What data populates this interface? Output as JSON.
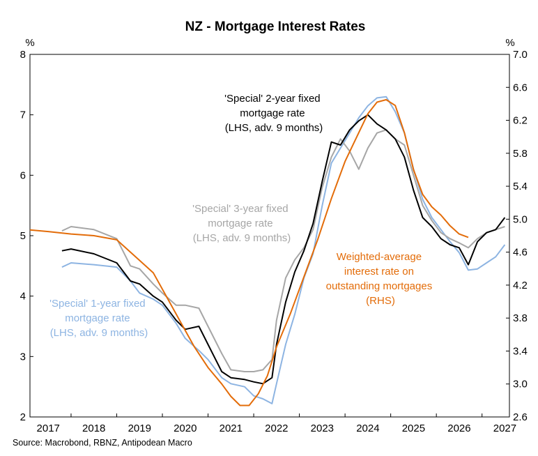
{
  "chart_data": {
    "type": "line",
    "title": "NZ - Mortgage Interest Rates",
    "left_axis": {
      "unit": "%",
      "ylim": [
        2,
        8
      ],
      "ticks": [
        "2",
        "3",
        "4",
        "5",
        "6",
        "7",
        "8"
      ]
    },
    "right_axis": {
      "unit": "%",
      "ylim": [
        2.6,
        7.0
      ],
      "ticks": [
        "2.6",
        "3.0",
        "3.4",
        "3.8",
        "4.2",
        "4.6",
        "5.0",
        "5.4",
        "5.8",
        "6.2",
        "6.6",
        "7.0"
      ]
    },
    "x_axis": {
      "xlim": [
        2016.6,
        2027.1
      ],
      "ticks": [
        "2017",
        "2018",
        "2019",
        "2020",
        "2021",
        "2022",
        "2023",
        "2024",
        "2025",
        "2026",
        "2027"
      ]
    },
    "grid": false,
    "source": "Source: Macrobond, RBNZ, Antipodean Macro",
    "annotations": {
      "two_year": [
        "'Special' 2-year fixed",
        "mortgage rate",
        "(LHS, adv. 9 months)"
      ],
      "three_year": [
        "'Special' 3-year fixed",
        "mortgage rate",
        "(LHS, adv. 9 months)"
      ],
      "one_year": [
        "'Special' 1-year fixed",
        "mortgage rate",
        "(LHS, adv. 9 months)"
      ],
      "weighted": [
        "Weighted-average",
        "interest rate on",
        "outstanding mortgages",
        "(RHS)"
      ]
    },
    "series": [
      {
        "key": "one_year",
        "axis": "left",
        "color": "#8db4e2",
        "x": [
          2017.3,
          2017.5,
          2018.0,
          2018.5,
          2018.8,
          2019.0,
          2019.3,
          2019.5,
          2019.8,
          2020.0,
          2020.3,
          2020.5,
          2020.8,
          2021.0,
          2021.3,
          2021.5,
          2021.7,
          2021.9,
          2022.0,
          2022.2,
          2022.4,
          2022.6,
          2022.8,
          2023.0,
          2023.2,
          2023.4,
          2023.6,
          2023.8,
          2024.0,
          2024.2,
          2024.4,
          2024.6,
          2024.8,
          2025.0,
          2025.2,
          2025.4,
          2025.6,
          2025.8,
          2026.0,
          2026.2,
          2026.4,
          2026.6,
          2026.8,
          2027.0
        ],
        "y": [
          4.48,
          4.55,
          4.52,
          4.48,
          4.25,
          4.05,
          3.95,
          3.85,
          3.55,
          3.3,
          3.1,
          2.95,
          2.65,
          2.55,
          2.5,
          2.35,
          2.3,
          2.22,
          2.55,
          3.2,
          3.7,
          4.3,
          4.7,
          5.5,
          6.2,
          6.45,
          6.7,
          6.95,
          7.15,
          7.28,
          7.3,
          7.05,
          6.7,
          6.1,
          5.6,
          5.3,
          5.1,
          4.9,
          4.72,
          4.43,
          4.45,
          4.55,
          4.65,
          4.85
        ]
      },
      {
        "key": "three_year",
        "axis": "left",
        "color": "#a6a6a6",
        "x": [
          2017.3,
          2017.5,
          2018.0,
          2018.5,
          2018.8,
          2019.0,
          2019.3,
          2019.5,
          2019.8,
          2020.0,
          2020.3,
          2020.5,
          2020.8,
          2021.0,
          2021.3,
          2021.5,
          2021.7,
          2021.9,
          2022.0,
          2022.2,
          2022.4,
          2022.6,
          2022.8,
          2023.0,
          2023.2,
          2023.4,
          2023.6,
          2023.8,
          2024.0,
          2024.2,
          2024.4,
          2024.6,
          2024.8,
          2025.0,
          2025.2,
          2025.4,
          2025.6,
          2025.8,
          2026.0,
          2026.2,
          2026.4,
          2026.6,
          2026.8,
          2027.0
        ],
        "y": [
          5.08,
          5.15,
          5.1,
          4.95,
          4.5,
          4.45,
          4.2,
          4.05,
          3.85,
          3.85,
          3.8,
          3.5,
          3.05,
          2.78,
          2.75,
          2.75,
          2.78,
          2.95,
          3.6,
          4.3,
          4.6,
          4.8,
          5.1,
          5.8,
          6.3,
          6.6,
          6.4,
          6.1,
          6.45,
          6.7,
          6.75,
          6.6,
          6.5,
          6.0,
          5.5,
          5.25,
          5.05,
          4.95,
          4.88,
          4.8,
          4.95,
          5.05,
          5.1,
          5.15
        ]
      },
      {
        "key": "two_year",
        "axis": "left",
        "color": "#000000",
        "x": [
          2017.3,
          2017.5,
          2018.0,
          2018.5,
          2018.8,
          2019.0,
          2019.3,
          2019.5,
          2019.8,
          2020.0,
          2020.3,
          2020.5,
          2020.8,
          2021.0,
          2021.3,
          2021.5,
          2021.7,
          2021.9,
          2022.0,
          2022.2,
          2022.4,
          2022.6,
          2022.8,
          2023.0,
          2023.2,
          2023.4,
          2023.6,
          2023.8,
          2024.0,
          2024.2,
          2024.4,
          2024.6,
          2024.8,
          2025.0,
          2025.2,
          2025.4,
          2025.6,
          2025.8,
          2026.0,
          2026.2,
          2026.4,
          2026.6,
          2026.8,
          2027.0
        ],
        "y": [
          4.75,
          4.78,
          4.7,
          4.55,
          4.25,
          4.2,
          4.0,
          3.9,
          3.6,
          3.45,
          3.5,
          3.2,
          2.75,
          2.65,
          2.62,
          2.58,
          2.55,
          2.65,
          3.2,
          3.9,
          4.4,
          4.75,
          5.2,
          5.9,
          6.55,
          6.5,
          6.75,
          6.9,
          7.0,
          6.85,
          6.75,
          6.6,
          6.3,
          5.75,
          5.3,
          5.15,
          4.95,
          4.85,
          4.8,
          4.52,
          4.9,
          5.05,
          5.1,
          5.3
        ]
      },
      {
        "key": "weighted",
        "axis": "right",
        "color": "#e36c09",
        "x": [
          2016.6,
          2017.0,
          2017.5,
          2018.0,
          2018.5,
          2019.0,
          2019.3,
          2019.6,
          2019.9,
          2020.2,
          2020.5,
          2020.8,
          2021.0,
          2021.2,
          2021.4,
          2021.6,
          2021.8,
          2022.0,
          2022.3,
          2022.6,
          2022.9,
          2023.2,
          2023.5,
          2023.8,
          2024.0,
          2024.2,
          2024.4,
          2024.6,
          2024.8,
          2025.0,
          2025.2,
          2025.4,
          2025.6,
          2025.8,
          2026.0,
          2026.2
        ],
        "y": [
          4.87,
          4.85,
          4.82,
          4.8,
          4.75,
          4.5,
          4.35,
          4.05,
          3.75,
          3.45,
          3.2,
          3.0,
          2.85,
          2.74,
          2.74,
          2.88,
          3.1,
          3.45,
          3.85,
          4.3,
          4.75,
          5.25,
          5.7,
          6.05,
          6.28,
          6.42,
          6.45,
          6.38,
          6.05,
          5.6,
          5.3,
          5.15,
          5.05,
          4.92,
          4.82,
          4.78
        ]
      }
    ]
  }
}
